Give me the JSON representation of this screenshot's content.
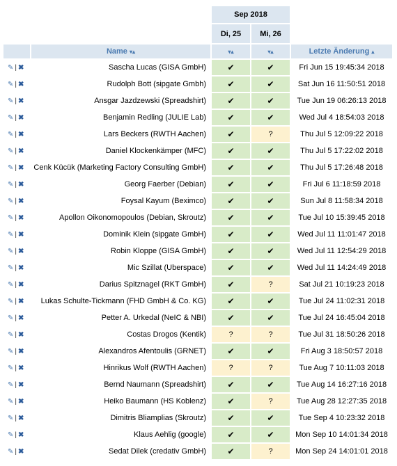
{
  "month_label": "Sep 2018",
  "days": [
    "Di, 25",
    "Mi, 26"
  ],
  "columns": {
    "name": "Name",
    "last_change": "Letzte Änderung"
  },
  "sort_icons": {
    "both": "▾▴",
    "up": "▴"
  },
  "icons": {
    "edit": "✎",
    "separator": "|",
    "delete": "✖"
  },
  "colors": {
    "yes_bg": "#d8ebc8",
    "maybe_bg": "#fdf1cf",
    "header_bg": "#dce6f0",
    "link": "#4a7ab0"
  },
  "rows": [
    {
      "name": "Sascha Lucas (GISA GmbH)",
      "d1": "✔",
      "d2": "✔",
      "changed": "Fri Jun 15 19:45:34 2018"
    },
    {
      "name": "Rudolph Bott (sipgate Gmbh)",
      "d1": "✔",
      "d2": "✔",
      "changed": "Sat Jun 16 11:50:51 2018"
    },
    {
      "name": "Ansgar Jazdzewski (Spreadshirt)",
      "d1": "✔",
      "d2": "✔",
      "changed": "Tue Jun 19 06:26:13 2018"
    },
    {
      "name": "Benjamin Redling (JULIE Lab)",
      "d1": "✔",
      "d2": "✔",
      "changed": "Wed Jul 4 18:54:03 2018"
    },
    {
      "name": "Lars Beckers (RWTH Aachen)",
      "d1": "✔",
      "d2": "?",
      "changed": "Thu Jul 5 12:09:22 2018"
    },
    {
      "name": "Daniel Klockenkämper (MFC)",
      "d1": "✔",
      "d2": "✔",
      "changed": "Thu Jul 5 17:22:02 2018"
    },
    {
      "name": "Cenk Kücük (Marketing Factory Consulting GmbH)",
      "d1": "✔",
      "d2": "✔",
      "changed": "Thu Jul 5 17:26:48 2018"
    },
    {
      "name": "Georg Faerber (Debian)",
      "d1": "✔",
      "d2": "✔",
      "changed": "Fri Jul 6 11:18:59 2018"
    },
    {
      "name": "Foysal Kayum (Beximco)",
      "d1": "✔",
      "d2": "✔",
      "changed": "Sun Jul 8 11:58:34 2018"
    },
    {
      "name": "Apollon Oikonomopoulos (Debian, Skroutz)",
      "d1": "✔",
      "d2": "✔",
      "changed": "Tue Jul 10 15:39:45 2018"
    },
    {
      "name": "Dominik Klein (sipgate GmbH)",
      "d1": "✔",
      "d2": "✔",
      "changed": "Wed Jul 11 11:01:47 2018"
    },
    {
      "name": "Robin Kloppe (GISA GmbH)",
      "d1": "✔",
      "d2": "✔",
      "changed": "Wed Jul 11 12:54:29 2018"
    },
    {
      "name": "Mic Szillat (Uberspace)",
      "d1": "✔",
      "d2": "✔",
      "changed": "Wed Jul 11 14:24:49 2018"
    },
    {
      "name": "Darius Spitznagel (RKT GmbH)",
      "d1": "✔",
      "d2": "?",
      "changed": "Sat Jul 21 10:19:23 2018"
    },
    {
      "name": "Lukas Schulte-Tickmann (FHD GmbH & Co. KG)",
      "d1": "✔",
      "d2": "✔",
      "changed": "Tue Jul 24 11:02:31 2018"
    },
    {
      "name": "Petter A. Urkedal (NeIC & NBI)",
      "d1": "✔",
      "d2": "✔",
      "changed": "Tue Jul 24 16:45:04 2018"
    },
    {
      "name": "Costas Drogos (Kentik)",
      "d1": "?",
      "d2": "?",
      "changed": "Tue Jul 31 18:50:26 2018"
    },
    {
      "name": "Alexandros Afentoulis (GRNET)",
      "d1": "✔",
      "d2": "✔",
      "changed": "Fri Aug 3 18:50:57 2018"
    },
    {
      "name": "Hinrikus Wolf (RWTH Aachen)",
      "d1": "?",
      "d2": "?",
      "changed": "Tue Aug 7 10:11:03 2018"
    },
    {
      "name": "Bernd Naumann (Spreadshirt)",
      "d1": "✔",
      "d2": "✔",
      "changed": "Tue Aug 14 16:27:16 2018"
    },
    {
      "name": "Heiko Baumann (HS Koblenz)",
      "d1": "✔",
      "d2": "?",
      "changed": "Tue Aug 28 12:27:35 2018"
    },
    {
      "name": "Dimitris Bliamplias (Skroutz)",
      "d1": "✔",
      "d2": "✔",
      "changed": "Tue Sep 4 10:23:32 2018"
    },
    {
      "name": "Klaus Aehlig (google)",
      "d1": "✔",
      "d2": "✔",
      "changed": "Mon Sep 10 14:01:34 2018"
    },
    {
      "name": "Sedat Dilek (credativ GmbH)",
      "d1": "✔",
      "d2": "?",
      "changed": "Mon Sep 24 14:01:01 2018"
    }
  ]
}
